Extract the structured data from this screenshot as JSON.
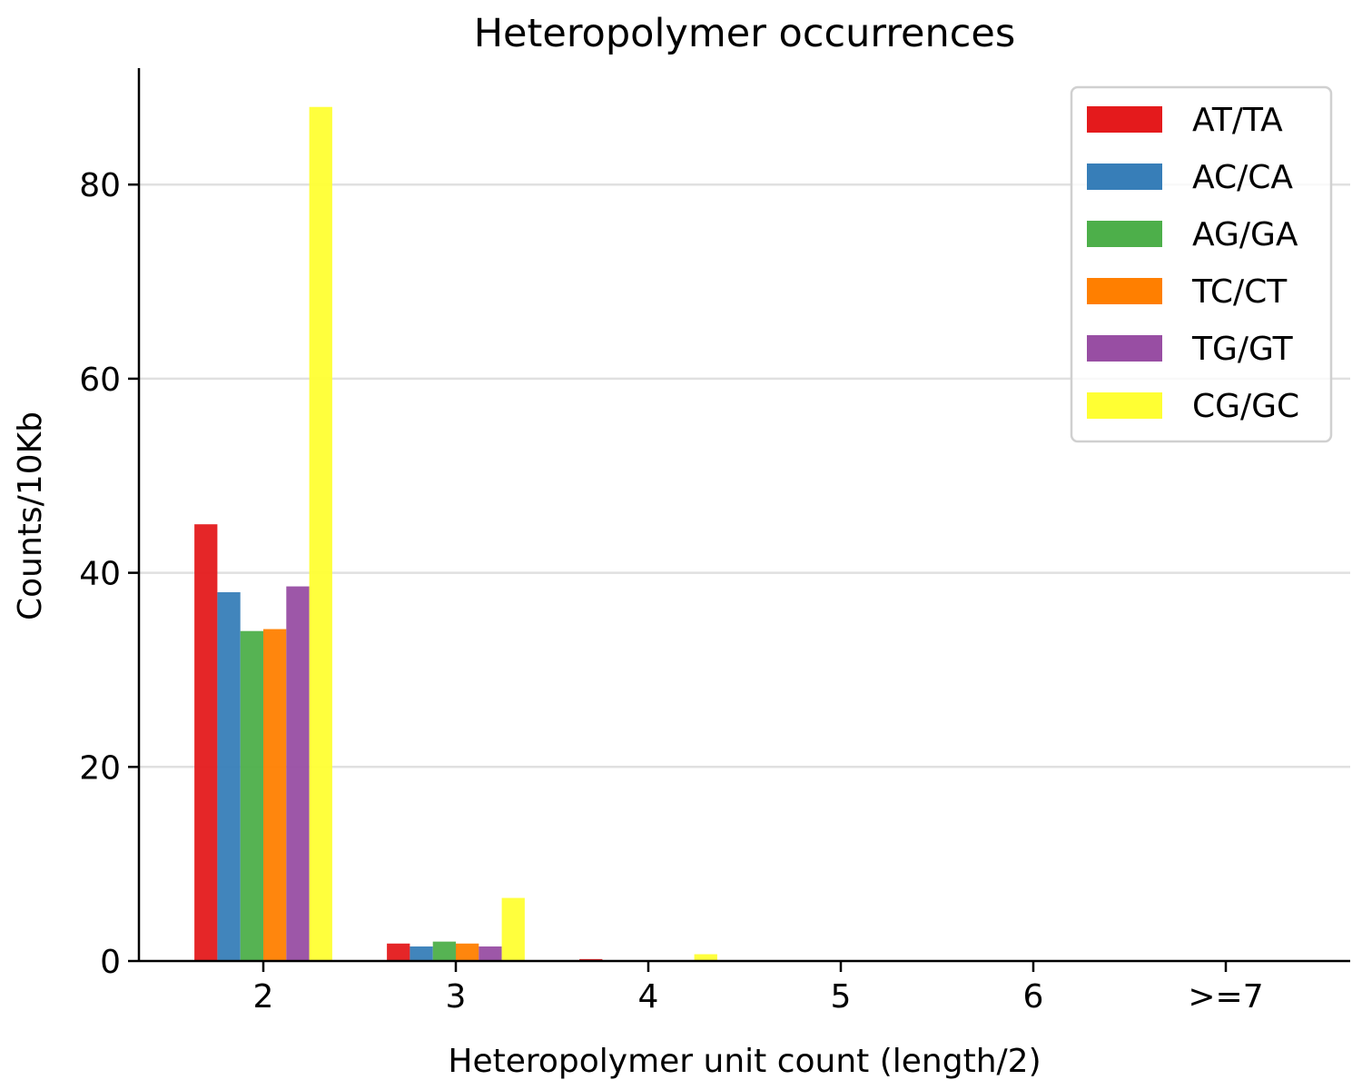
{
  "chart_data": {
    "type": "bar",
    "title": "Heteropolymer occurrences",
    "xlabel": "Heteropolymer unit count (length/2)",
    "ylabel": "Counts/10Kb",
    "categories": [
      "2",
      "3",
      "4",
      "5",
      "6",
      ">=7"
    ],
    "ylim": [
      0,
      92
    ],
    "yticks": [
      0,
      20,
      40,
      60,
      80
    ],
    "grid": "y",
    "legend_position": "top-right",
    "series": [
      {
        "name": "AT/TA",
        "color": "#e41a1c",
        "values": [
          45.0,
          1.8,
          0.2,
          0,
          0,
          0
        ]
      },
      {
        "name": "AC/CA",
        "color": "#377eb8",
        "values": [
          38.0,
          1.5,
          0,
          0,
          0,
          0
        ]
      },
      {
        "name": "AG/GA",
        "color": "#4daf4a",
        "values": [
          34.0,
          2.0,
          0,
          0,
          0,
          0
        ]
      },
      {
        "name": "TC/CT",
        "color": "#ff7f00",
        "values": [
          34.2,
          1.8,
          0,
          0,
          0,
          0
        ]
      },
      {
        "name": "TG/GT",
        "color": "#984ea3",
        "values": [
          38.6,
          1.5,
          0,
          0,
          0,
          0
        ]
      },
      {
        "name": "CG/GC",
        "color": "#ffff33",
        "values": [
          88.0,
          6.5,
          0.7,
          0,
          0,
          0
        ]
      }
    ]
  }
}
